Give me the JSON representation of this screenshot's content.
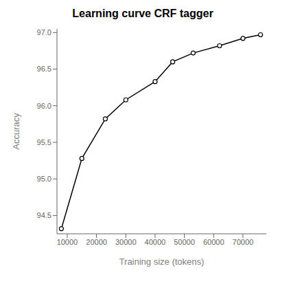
{
  "chart_data": {
    "type": "line",
    "title": "Learning curve CRF tagger",
    "xlabel": "Training size (tokens)",
    "ylabel": "Accuracy",
    "x": [
      8000,
      15000,
      23000,
      30000,
      40000,
      46000,
      53000,
      62000,
      70000,
      76000
    ],
    "values": [
      94.32,
      95.28,
      95.82,
      96.08,
      96.33,
      96.6,
      96.72,
      96.82,
      96.92,
      96.97
    ],
    "color": "#000000",
    "marker": "circle",
    "xlim": [
      6500,
      78000
    ],
    "ylim": [
      94.25,
      97.05
    ],
    "xticks": [
      10000,
      20000,
      30000,
      40000,
      50000,
      60000,
      70000
    ],
    "yticks": [
      94.5,
      {
        "value": 95.0,
        "label": "95.0"
      },
      95.5,
      {
        "value": 96.0,
        "label": "96.0"
      },
      96.5,
      {
        "value": 97.0,
        "label": "97.0"
      }
    ],
    "grid": false
  }
}
